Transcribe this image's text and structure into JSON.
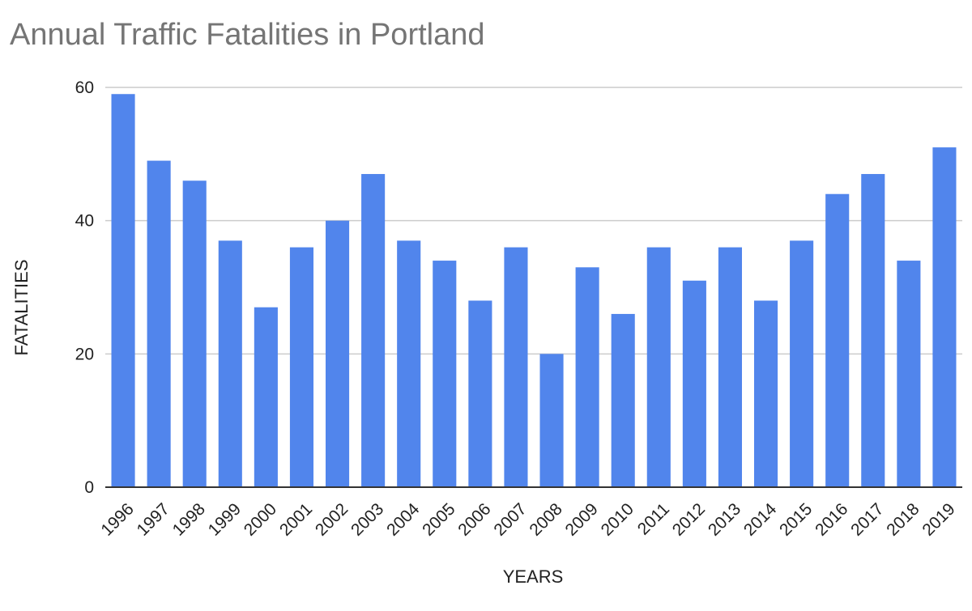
{
  "chart_data": {
    "type": "bar",
    "title": "Annual Traffic Fatalities in Portland",
    "xlabel": "YEARS",
    "ylabel": "FATALITIES",
    "categories": [
      "1996",
      "1997",
      "1998",
      "1999",
      "2000",
      "2001",
      "2002",
      "2003",
      "2004",
      "2005",
      "2006",
      "2007",
      "2008",
      "2009",
      "2010",
      "2011",
      "2012",
      "2013",
      "2014",
      "2015",
      "2016",
      "2017",
      "2018",
      "2019"
    ],
    "values": [
      59,
      49,
      46,
      37,
      27,
      36,
      40,
      47,
      37,
      34,
      28,
      36,
      20,
      33,
      26,
      36,
      31,
      36,
      28,
      37,
      44,
      47,
      34,
      51
    ],
    "ylim": [
      0,
      60
    ],
    "yticks": [
      "0",
      "20",
      "40",
      "60"
    ],
    "grid": true,
    "legend": "none",
    "bar_color": "#5185EC",
    "grid_color": "#cccccc",
    "axis_color": "#333333"
  }
}
